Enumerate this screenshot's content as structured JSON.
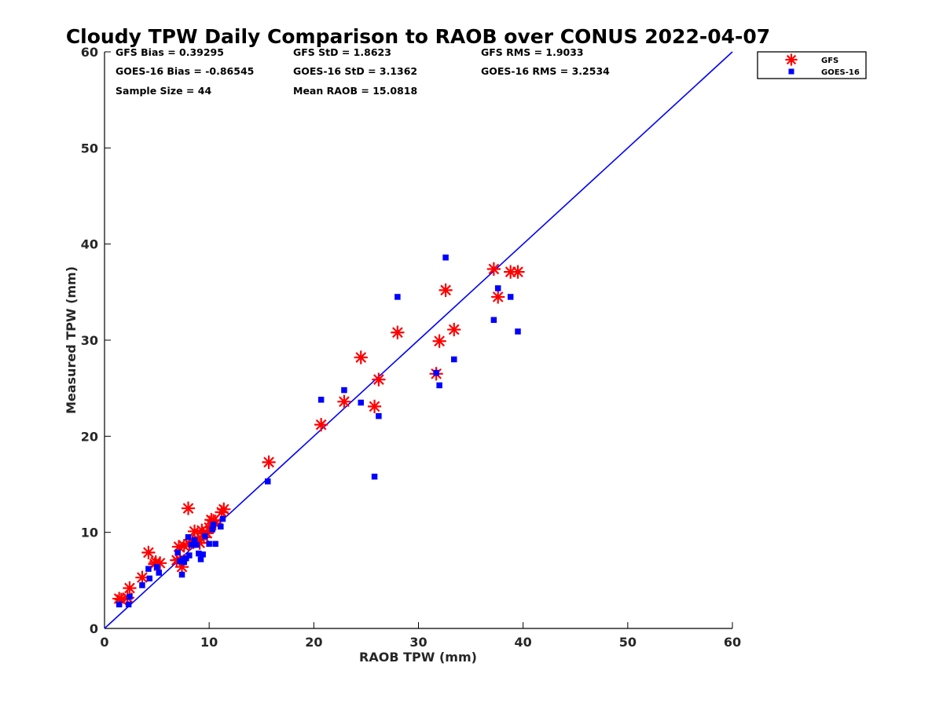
{
  "chart_data": {
    "type": "scatter",
    "title": "Cloudy TPW Daily Comparison to RAOB over CONUS 2022-04-07",
    "xlabel": "RAOB TPW (mm)",
    "ylabel": "Measured TPW (mm)",
    "xlim": [
      0,
      60
    ],
    "ylim": [
      0,
      60
    ],
    "xticks": [
      "0",
      "10",
      "20",
      "30",
      "40",
      "50",
      "60"
    ],
    "yticks": [
      "0",
      "10",
      "20",
      "30",
      "40",
      "50",
      "60"
    ],
    "grid": false,
    "legend_position": "outside-top-right",
    "stats": [
      "GFS Bias = 0.39295",
      "GFS StD = 1.8623",
      "GFS RMS = 1.9033",
      "GOES-16 Bias = -0.86545",
      "GOES-16 StD = 3.1362",
      "GOES-16 RMS = 3.2534",
      "Sample Size = 44",
      "Mean RAOB = 15.0818"
    ],
    "reference_line": {
      "x": [
        0,
        60
      ],
      "y": [
        0,
        60
      ],
      "color": "#0000ff"
    },
    "series": [
      {
        "name": "GFS",
        "marker": "asterisk",
        "color": "#ff0000",
        "x": [
          1.4,
          2.4,
          3.6,
          4.2,
          4.8,
          5.3,
          7.1,
          7.4,
          7.6,
          8.0,
          8.1,
          8.6,
          8.9,
          9.3,
          9.5,
          10.0,
          10.4,
          11.2,
          11.4,
          15.7,
          20.7,
          22.9,
          24.5,
          25.8,
          26.2,
          28.0,
          31.7,
          32.0,
          32.6,
          33.4,
          37.2,
          37.6,
          38.8,
          39.5,
          7.2,
          9.8,
          10.2,
          8.4,
          6.9,
          4.9,
          2.2,
          1.6,
          9.1,
          10.6
        ],
        "y": [
          3.1,
          4.2,
          5.3,
          7.9,
          6.7,
          6.8,
          8.5,
          6.4,
          8.6,
          12.5,
          8.8,
          10.1,
          9.3,
          10.2,
          9.5,
          10.5,
          11.2,
          12.1,
          12.4,
          17.3,
          21.2,
          23.6,
          28.2,
          23.1,
          25.9,
          30.8,
          26.5,
          29.9,
          35.2,
          31.1,
          37.4,
          34.5,
          37.1,
          37.1,
          7.2,
          9.9,
          11.3,
          9.0,
          7.1,
          6.9,
          3.2,
          3.0,
          8.9,
          10.9
        ]
      },
      {
        "name": "GOES-16",
        "marker": "square",
        "color": "#0000ff",
        "x": [
          1.4,
          2.3,
          2.4,
          3.6,
          4.2,
          4.3,
          5.0,
          5.2,
          7.0,
          7.2,
          7.4,
          7.5,
          7.6,
          7.8,
          8.0,
          8.1,
          8.6,
          8.8,
          9.0,
          9.2,
          9.4,
          9.6,
          10.0,
          10.3,
          10.4,
          10.6,
          11.1,
          11.3,
          15.6,
          20.7,
          22.9,
          24.5,
          25.8,
          26.2,
          28.0,
          31.7,
          32.0,
          32.6,
          33.4,
          37.2,
          37.6,
          38.8,
          39.5,
          8.3
        ],
        "y": [
          2.5,
          2.5,
          3.3,
          4.5,
          6.2,
          5.2,
          6.4,
          5.8,
          7.9,
          7.0,
          5.6,
          7.2,
          6.9,
          7.3,
          9.5,
          7.6,
          9.2,
          8.7,
          7.8,
          7.2,
          7.7,
          9.6,
          8.8,
          10.3,
          10.8,
          8.8,
          10.6,
          11.4,
          15.3,
          23.8,
          24.8,
          23.5,
          15.8,
          22.1,
          34.5,
          26.6,
          25.3,
          38.6,
          28.0,
          32.1,
          35.4,
          34.5,
          30.9,
          8.7
        ]
      }
    ]
  }
}
